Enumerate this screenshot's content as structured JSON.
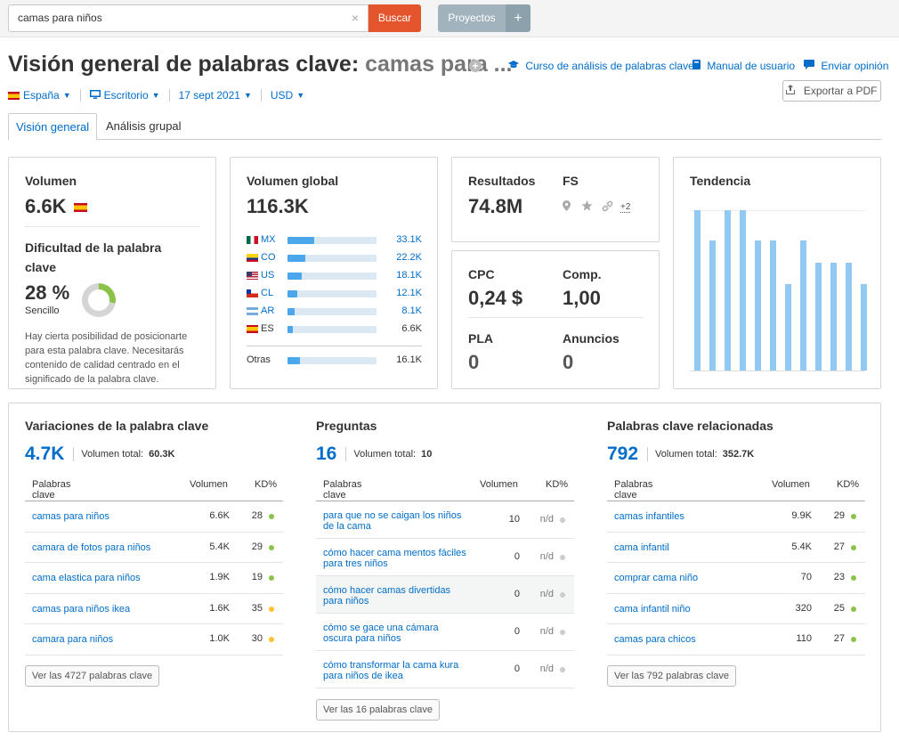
{
  "topbar": {
    "search_value": "camas para niños",
    "clear_icon": "×",
    "search_button": "Buscar",
    "projects_button": "Proyectos",
    "add_button": "+"
  },
  "header": {
    "title_prefix": "Visión general de palabras clave:",
    "title_keyword": "camas para ...",
    "add_icon": "+",
    "links": {
      "course": "Curso de análisis de palabras clave",
      "manual": "Manual de usuario",
      "feedback": "Enviar opinión"
    },
    "export_button": "Exportar a PDF"
  },
  "filters": {
    "country": "España",
    "device": "Escritorio",
    "date": "17 sept 2021",
    "currency": "USD"
  },
  "tabs": {
    "overview": "Visión general",
    "group": "Análisis grupal"
  },
  "volume_card": {
    "title": "Volumen",
    "value": "6.6K",
    "difficulty_title": "Dificultad de la palabra clave",
    "difficulty_value": "28 %",
    "difficulty_percent": 28,
    "difficulty_label": "Sencillo",
    "description": "Hay cierta posibilidad de posicionarte para esta palabra clave. Necesitarás contenido de calidad centrado en el significado de la palabra clave."
  },
  "global_card": {
    "title": "Volumen global",
    "value": "116.3K",
    "countries": [
      {
        "code": "MX",
        "flag": "mx",
        "value": "33.1K",
        "share": 0.3
      },
      {
        "code": "CO",
        "flag": "co",
        "value": "22.2K",
        "share": 0.2
      },
      {
        "code": "US",
        "flag": "us",
        "value": "18.1K",
        "share": 0.16
      },
      {
        "code": "CL",
        "flag": "cl",
        "value": "12.1K",
        "share": 0.11
      },
      {
        "code": "AR",
        "flag": "ar",
        "value": "8.1K",
        "share": 0.08
      },
      {
        "code": "ES",
        "flag": "es",
        "value": "6.6K",
        "share": 0.06
      }
    ],
    "others": {
      "label": "Otras",
      "value": "16.1K",
      "share": 0.14
    }
  },
  "results_card": {
    "results_label": "Resultados",
    "results_value": "74.8M",
    "fs_label": "FS",
    "fs_icons": [
      "pin-icon",
      "star-icon",
      "link-icon"
    ],
    "fs_more": "+2"
  },
  "cpc_card": {
    "cpc_label": "CPC",
    "cpc_value": "0,24 $",
    "comp_label": "Comp.",
    "comp_value": "1,00",
    "pla_label": "PLA",
    "pla_value": "0",
    "ads_label": "Anuncios",
    "ads_value": "0"
  },
  "trend_card": {
    "title": "Tendencia",
    "values": [
      1.0,
      0.81,
      1.0,
      1.0,
      0.81,
      0.81,
      0.54,
      0.81,
      0.67,
      0.67,
      0.67,
      0.54
    ]
  },
  "variations": {
    "title": "Variaciones de la palabra clave",
    "count": "4.7K",
    "total_label": "Volumen total:",
    "total_value": "60.3K",
    "headers": {
      "kw": "Palabras clave",
      "vol": "Volumen",
      "kd": "KD%"
    },
    "rows": [
      {
        "kw": "camas para niños",
        "vol": "6.6K",
        "kd": "28",
        "dot": "#8bc34a"
      },
      {
        "kw": "camara de fotos para niños",
        "vol": "5.4K",
        "kd": "29",
        "dot": "#8bc34a"
      },
      {
        "kw": "cama elastica para niños",
        "vol": "1.9K",
        "kd": "19",
        "dot": "#8bc34a"
      },
      {
        "kw": "camas para niños ikea",
        "vol": "1.6K",
        "kd": "35",
        "dot": "#fdc02f"
      },
      {
        "kw": "camara para niños",
        "vol": "1.0K",
        "kd": "30",
        "dot": "#fdc02f"
      }
    ],
    "more_button": "Ver las 4727 palabras clave"
  },
  "questions": {
    "title": "Preguntas",
    "count": "16",
    "total_label": "Volumen total:",
    "total_value": "10",
    "headers": {
      "kw": "Palabras clave",
      "vol": "Volumen",
      "kd": "KD%"
    },
    "rows": [
      {
        "kw1": "para que no se caigan los niños",
        "kw2": "de la cama",
        "vol": "10",
        "kd": "n/d",
        "dot": "#cccccc"
      },
      {
        "kw1": "cómo hacer cama mentos fáciles",
        "kw2": "para tres niños",
        "vol": "0",
        "kd": "n/d",
        "dot": "#cccccc"
      },
      {
        "kw1": "cómo hacer camas divertidas",
        "kw2": "para niños",
        "vol": "0",
        "kd": "n/d",
        "dot": "#cccccc"
      },
      {
        "kw1": "cómo se gace una cámara",
        "kw2": "oscura para niños",
        "vol": "0",
        "kd": "n/d",
        "dot": "#cccccc"
      },
      {
        "kw1": "cómo transformar la cama kura",
        "kw2": "para niños de ikea",
        "vol": "0",
        "kd": "n/d",
        "dot": "#cccccc"
      }
    ],
    "more_button": "Ver las 16 palabras clave"
  },
  "related": {
    "title": "Palabras clave relacionadas",
    "count": "792",
    "total_label": "Volumen total:",
    "total_value": "352.7K",
    "headers": {
      "kw": "Palabras clave",
      "vol": "Volumen",
      "kd": "KD%"
    },
    "rows": [
      {
        "kw": "camas infantiles",
        "vol": "9.9K",
        "kd": "29",
        "dot": "#8bc34a"
      },
      {
        "kw": "cama infantil",
        "vol": "5.4K",
        "kd": "27",
        "dot": "#8bc34a"
      },
      {
        "kw": "comprar cama niño",
        "vol": "70",
        "kd": "23",
        "dot": "#8bc34a"
      },
      {
        "kw": "cama infantil niño",
        "vol": "320",
        "kd": "25",
        "dot": "#8bc34a"
      },
      {
        "kw": "camas para chicos",
        "vol": "110",
        "kd": "27",
        "dot": "#8bc34a"
      }
    ],
    "more_button": "Ver las 792 palabras clave"
  },
  "colors": {
    "accent": "#006dca",
    "search_button": "#e4542d",
    "easy": "#8bc34a",
    "medium": "#fdc02f",
    "na": "#cccccc",
    "bar": "#4ba6ec",
    "trend": "#91c9f2"
  }
}
